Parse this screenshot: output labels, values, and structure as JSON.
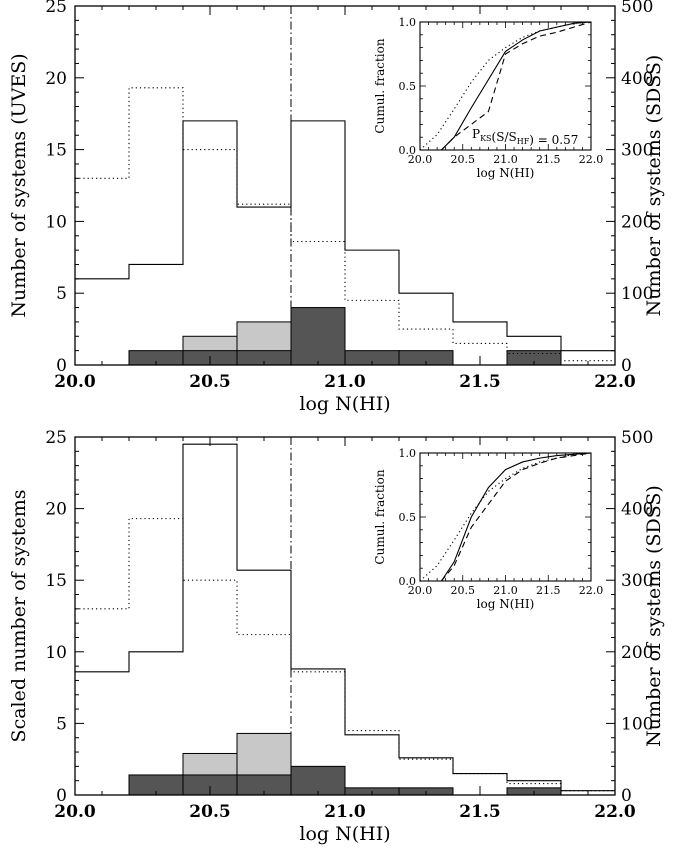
{
  "chart_data": [
    {
      "type": "histogram",
      "panel": "top",
      "xlabel": "log N(HI)",
      "ylabel": "Number of systems (UVES)",
      "y2label": "Number of systems (SDSS)",
      "xlim": [
        20.0,
        22.0
      ],
      "ylim": [
        0,
        25
      ],
      "y2lim": [
        0,
        500
      ],
      "xticks": [
        "20.0",
        "20.5",
        "21.0",
        "21.5",
        "22.0"
      ],
      "yticks": [
        "0",
        "5",
        "10",
        "15",
        "20",
        "25"
      ],
      "y2ticks": [
        "0",
        "100",
        "200",
        "300",
        "400",
        "500"
      ],
      "vline_x": 20.8,
      "bin_edges": [
        20.0,
        20.2,
        20.4,
        20.6,
        20.8,
        21.0,
        21.2,
        21.4,
        21.6,
        21.8,
        22.0
      ],
      "series": [
        {
          "style": "solid",
          "values": [
            6,
            7,
            17,
            11,
            17,
            8,
            5,
            3,
            2,
            1
          ]
        },
        {
          "style": "dotted",
          "values": [
            13,
            19.3,
            15,
            11.2,
            8.6,
            4.5,
            2.5,
            1.5,
            0.8,
            0.3
          ]
        },
        {
          "style": "light-filled",
          "values": [
            0,
            0,
            2,
            3,
            0,
            0,
            0,
            0,
            0,
            0
          ]
        },
        {
          "style": "dark-filled",
          "values": [
            0,
            1,
            1,
            1,
            4,
            1,
            1,
            0,
            1,
            0
          ]
        }
      ],
      "inset": {
        "type": "line",
        "xlabel": "log N(HI)",
        "ylabel": "Cumul. fraction",
        "xlim": [
          20.0,
          22.0
        ],
        "ylim": [
          0,
          1
        ],
        "xticks": [
          "20.0",
          "20.5",
          "21.0",
          "21.5",
          "22.0"
        ],
        "yticks": [
          "0.0",
          "0.5",
          "1.0"
        ],
        "annotation": "P_KS(S/S_HF) = 0.57",
        "series": [
          {
            "style": "solid",
            "x": [
              20.25,
              20.4,
              20.6,
              20.8,
              21.0,
              21.2,
              21.4,
              21.6,
              21.8,
              22.0
            ],
            "y": [
              0.0,
              0.1,
              0.33,
              0.55,
              0.77,
              0.86,
              0.93,
              0.96,
              0.99,
              1.0
            ]
          },
          {
            "style": "dashed",
            "x": [
              20.25,
              20.4,
              20.6,
              20.8,
              21.0,
              21.2,
              21.4,
              21.6,
              21.8,
              22.0
            ],
            "y": [
              0.0,
              0.1,
              0.2,
              0.3,
              0.75,
              0.83,
              0.89,
              0.92,
              0.96,
              1.0
            ]
          },
          {
            "style": "dotted",
            "x": [
              20.0,
              20.2,
              20.4,
              20.6,
              20.8,
              21.0,
              21.2,
              21.4,
              21.6,
              21.8,
              22.0
            ],
            "y": [
              0.0,
              0.12,
              0.32,
              0.53,
              0.7,
              0.8,
              0.88,
              0.93,
              0.96,
              0.99,
              1.0
            ]
          }
        ]
      }
    },
    {
      "type": "histogram",
      "panel": "bottom",
      "xlabel": "log N(HI)",
      "ylabel": "Scaled number of systems",
      "y2label": "Number of systems (SDSS)",
      "xlim": [
        20.0,
        22.0
      ],
      "ylim": [
        0,
        25
      ],
      "y2lim": [
        0,
        500
      ],
      "xticks": [
        "20.0",
        "20.5",
        "21.0",
        "21.5",
        "22.0"
      ],
      "yticks": [
        "0",
        "5",
        "10",
        "15",
        "20",
        "25"
      ],
      "y2ticks": [
        "0",
        "100",
        "200",
        "300",
        "400",
        "500"
      ],
      "vline_x": 20.8,
      "bin_edges": [
        20.0,
        20.2,
        20.4,
        20.6,
        20.8,
        21.0,
        21.2,
        21.4,
        21.6,
        21.8,
        22.0
      ],
      "series": [
        {
          "style": "solid",
          "values": [
            8.6,
            10,
            24.5,
            15.7,
            8.8,
            4.2,
            2.6,
            1.5,
            1.0,
            0.3
          ]
        },
        {
          "style": "dotted",
          "values": [
            13,
            19.3,
            15,
            11.2,
            8.6,
            4.5,
            2.5,
            1.5,
            0.8,
            0.3
          ]
        },
        {
          "style": "light-filled",
          "values": [
            0,
            0,
            2.9,
            4.3,
            0,
            0,
            0,
            0,
            0,
            0
          ]
        },
        {
          "style": "dark-filled",
          "values": [
            0,
            1.4,
            1.4,
            1.4,
            2.0,
            0.5,
            0.5,
            0,
            0.5,
            0
          ]
        }
      ],
      "inset": {
        "type": "line",
        "xlabel": "log N(HI)",
        "ylabel": "Cumul. fraction",
        "xlim": [
          20.0,
          22.0
        ],
        "ylim": [
          0,
          1
        ],
        "xticks": [
          "20.0",
          "20.5",
          "21.0",
          "21.5",
          "22.0"
        ],
        "yticks": [
          "0.0",
          "0.5",
          "1.0"
        ],
        "annotation": "",
        "series": [
          {
            "style": "solid",
            "x": [
              20.25,
              20.4,
              20.6,
              20.8,
              21.0,
              21.2,
              21.4,
              21.6,
              21.8,
              22.0
            ],
            "y": [
              0.0,
              0.15,
              0.5,
              0.73,
              0.87,
              0.93,
              0.96,
              0.98,
              0.99,
              1.0
            ]
          },
          {
            "style": "dashed",
            "x": [
              20.25,
              20.4,
              20.6,
              20.8,
              21.0,
              21.2,
              21.4,
              21.6,
              21.8,
              22.0
            ],
            "y": [
              0.0,
              0.12,
              0.42,
              0.6,
              0.78,
              0.87,
              0.92,
              0.96,
              0.98,
              1.0
            ]
          },
          {
            "style": "dotted",
            "x": [
              20.0,
              20.2,
              20.4,
              20.6,
              20.8,
              21.0,
              21.2,
              21.4,
              21.6,
              21.8,
              22.0
            ],
            "y": [
              0.0,
              0.12,
              0.32,
              0.53,
              0.7,
              0.8,
              0.88,
              0.93,
              0.96,
              0.99,
              1.0
            ]
          }
        ]
      }
    }
  ]
}
